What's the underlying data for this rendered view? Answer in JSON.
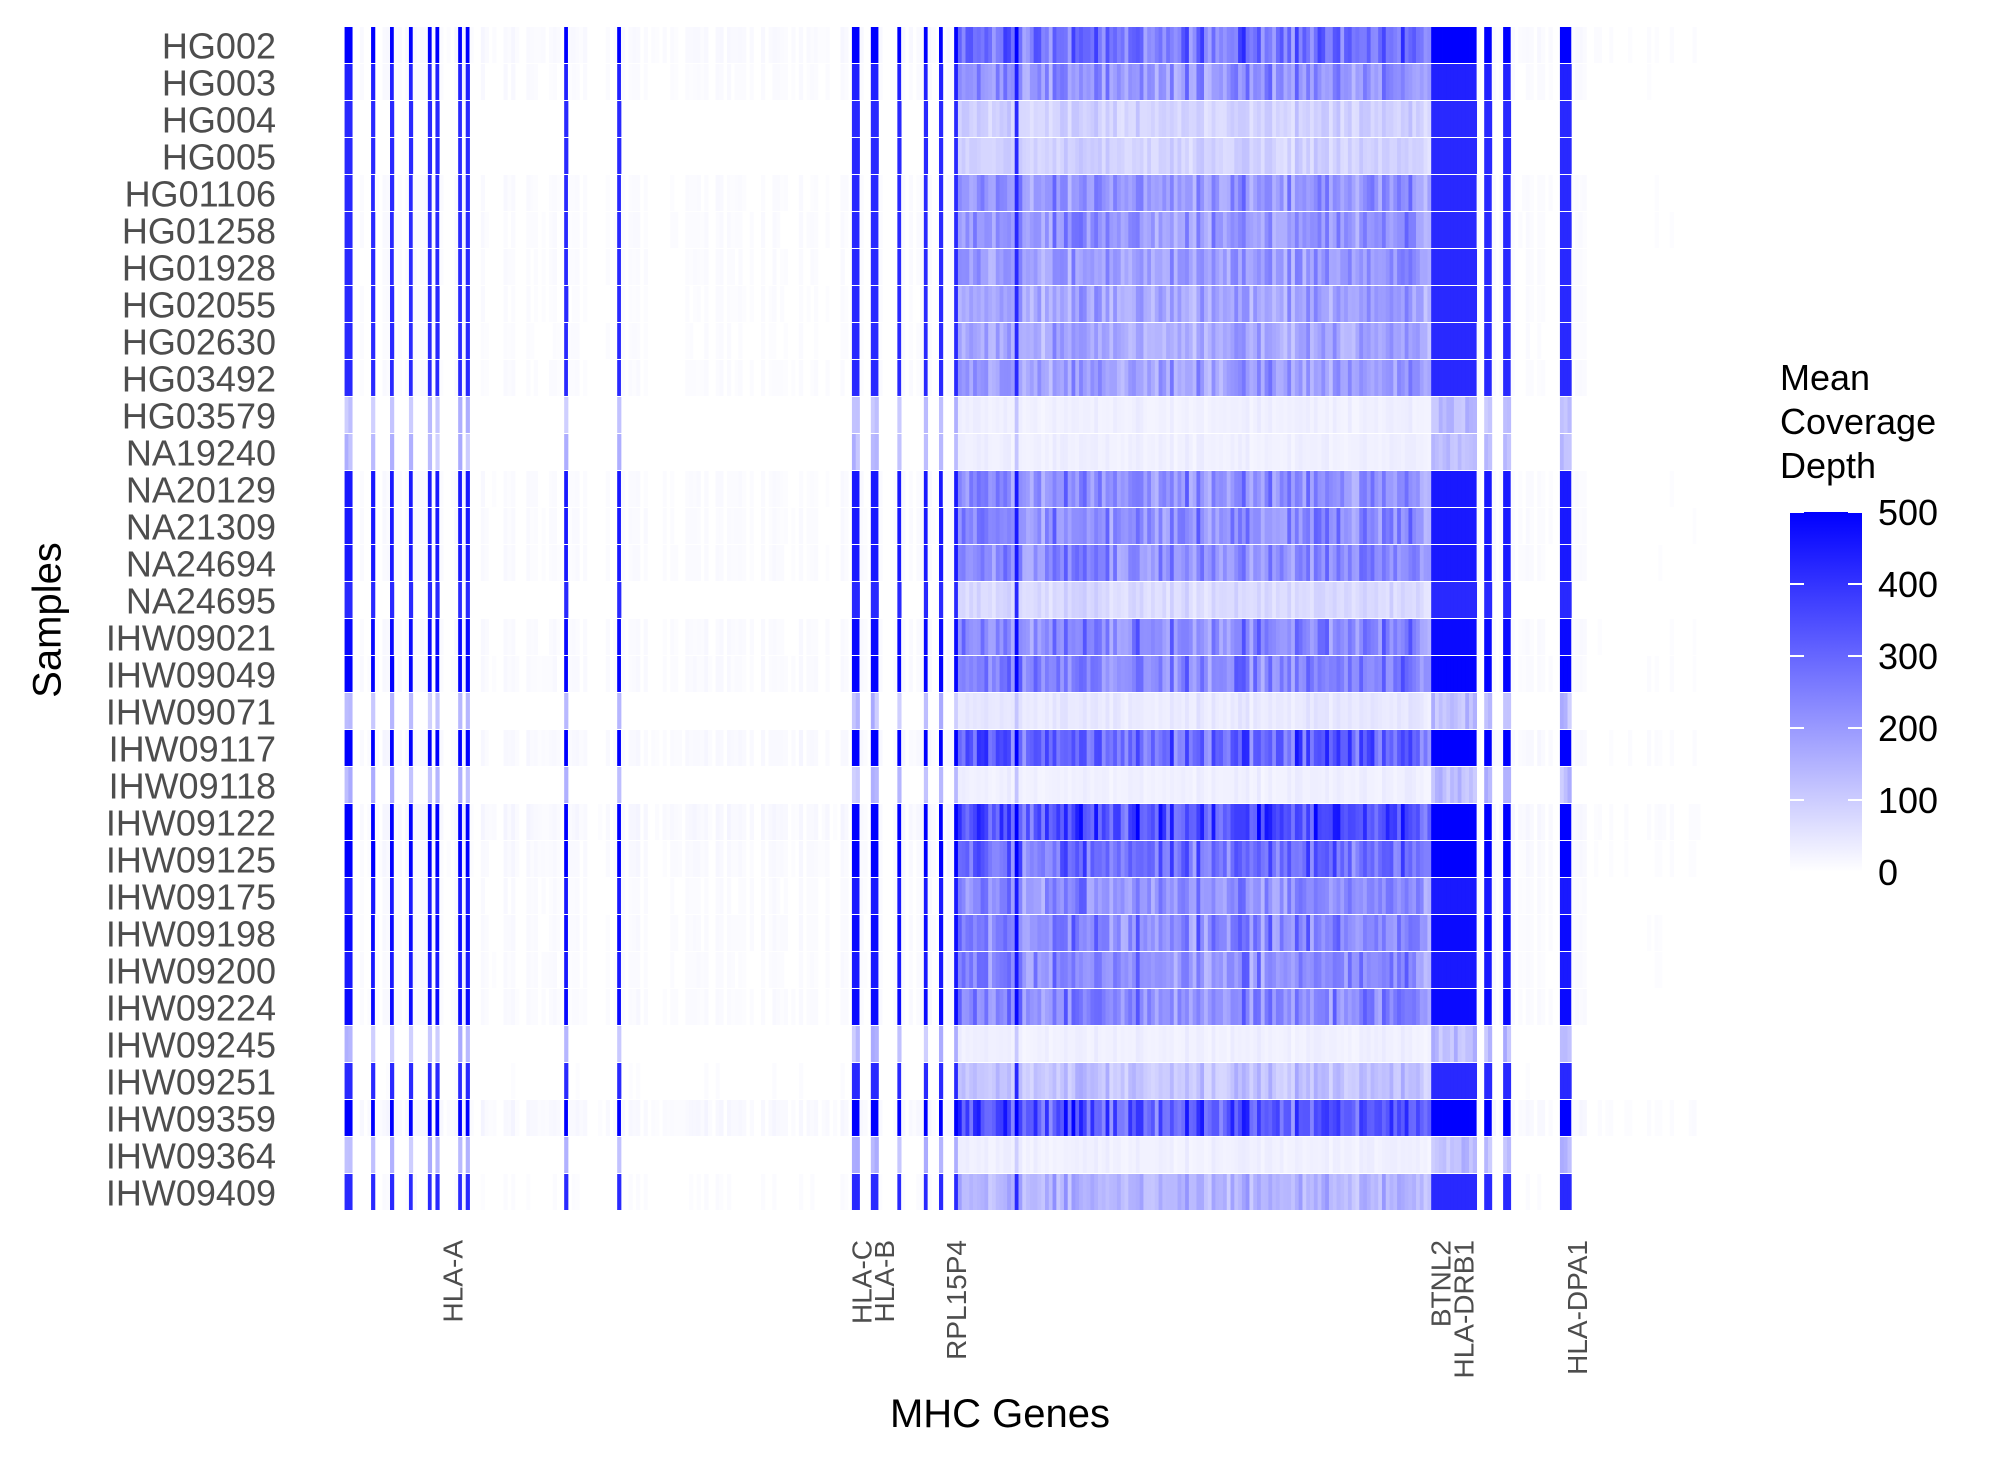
{
  "chart_data": {
    "type": "heatmap",
    "title": "",
    "xlabel": "MHC Genes",
    "ylabel": "Samples",
    "samples": [
      "HG002",
      "HG003",
      "HG004",
      "HG005",
      "HG01106",
      "HG01258",
      "HG01928",
      "HG02055",
      "HG02630",
      "HG03492",
      "HG03579",
      "NA19240",
      "NA20129",
      "NA21309",
      "NA24694",
      "NA24695",
      "IHW09021",
      "IHW09049",
      "IHW09071",
      "IHW09117",
      "IHW09118",
      "IHW09122",
      "IHW09125",
      "IHW09175",
      "IHW09198",
      "IHW09200",
      "IHW09224",
      "IHW09245",
      "IHW09251",
      "IHW09359",
      "IHW09364",
      "IHW09409"
    ],
    "gene_labels": [
      {
        "name": "HLA-A",
        "gene_index": 30
      },
      {
        "name": "HLA-C",
        "gene_index": 138
      },
      {
        "name": "HLA-B",
        "gene_index": 144
      },
      {
        "name": "RPL15P4",
        "gene_index": 163
      },
      {
        "name": "BTNL2",
        "gene_index": 291
      },
      {
        "name": "HLA-DRB1",
        "gene_index": 297
      },
      {
        "name": "HLA-DPA1",
        "gene_index": 327
      }
    ],
    "n_genes": 360,
    "sample_level": [
      380,
      290,
      120,
      120,
      280,
      280,
      260,
      240,
      230,
      260,
      40,
      40,
      300,
      300,
      300,
      100,
      320,
      330,
      60,
      420,
      40,
      480,
      380,
      300,
      320,
      300,
      320,
      40,
      160,
      450,
      40,
      200
    ],
    "legend": {
      "title_lines": [
        "Mean",
        "Coverage",
        "Depth"
      ],
      "ticks": [
        "500",
        "400",
        "300",
        "200",
        "100",
        "0"
      ],
      "range": [
        0,
        500
      ],
      "low_color": "#ffffff",
      "high_color": "#0000ff"
    }
  }
}
